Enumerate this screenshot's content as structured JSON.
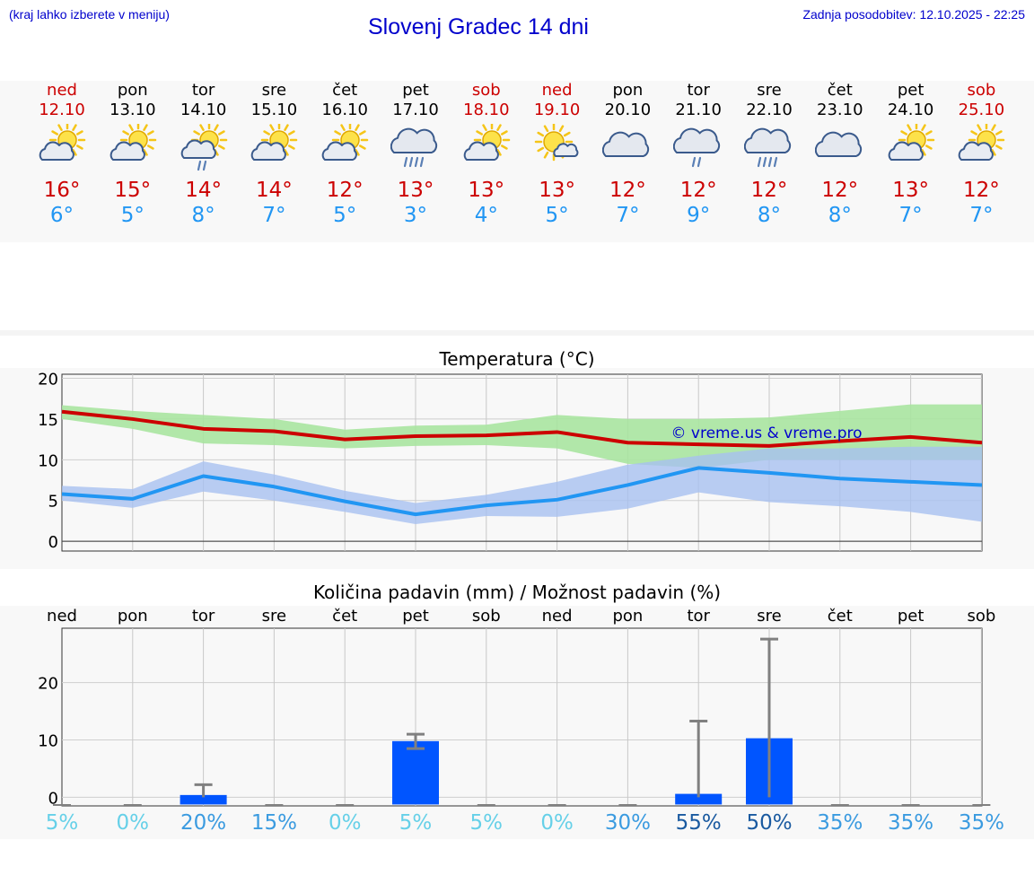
{
  "header": {
    "hint": "(kraj lahko izberete v meniju)",
    "title": "Slovenj Gradec 14 dni",
    "updated": "Zadnja posodobitev: 12.10.2025 - 22:25"
  },
  "colors": {
    "weekend": "#cc0000",
    "weekday": "#000000",
    "max_temp": "#cc0000",
    "min_temp": "#2196f3",
    "max_band": "#a8e4a0",
    "min_band": "#a8c0f0",
    "precip_bar": "#0055ff",
    "error_bar": "#808080",
    "watermark": "#0000cc"
  },
  "days": [
    {
      "name": "ned",
      "date": "12.10",
      "weekend": true,
      "icon": "partly-cloudy-sun-icon",
      "max": "16°",
      "min": "6°"
    },
    {
      "name": "pon",
      "date": "13.10",
      "weekend": false,
      "icon": "partly-cloudy-sun-icon",
      "max": "15°",
      "min": "5°"
    },
    {
      "name": "tor",
      "date": "14.10",
      "weekend": false,
      "icon": "sun-cloud-light-rain-icon",
      "max": "14°",
      "min": "8°"
    },
    {
      "name": "sre",
      "date": "15.10",
      "weekend": false,
      "icon": "partly-cloudy-sun-icon",
      "max": "14°",
      "min": "7°"
    },
    {
      "name": "čet",
      "date": "16.10",
      "weekend": false,
      "icon": "partly-cloudy-sun-icon",
      "max": "12°",
      "min": "5°"
    },
    {
      "name": "pet",
      "date": "17.10",
      "weekend": false,
      "icon": "cloud-rain-icon",
      "max": "13°",
      "min": "3°"
    },
    {
      "name": "sob",
      "date": "18.10",
      "weekend": true,
      "icon": "partly-cloudy-sun-icon",
      "max": "13°",
      "min": "4°"
    },
    {
      "name": "ned",
      "date": "19.10",
      "weekend": true,
      "icon": "sun-small-cloud-icon",
      "max": "13°",
      "min": "5°"
    },
    {
      "name": "pon",
      "date": "20.10",
      "weekend": false,
      "icon": "cloudy-icon",
      "max": "12°",
      "min": "7°"
    },
    {
      "name": "tor",
      "date": "21.10",
      "weekend": false,
      "icon": "cloud-light-rain-icon",
      "max": "12°",
      "min": "9°"
    },
    {
      "name": "sre",
      "date": "22.10",
      "weekend": false,
      "icon": "cloud-rain-icon",
      "max": "12°",
      "min": "8°"
    },
    {
      "name": "čet",
      "date": "23.10",
      "weekend": false,
      "icon": "cloudy-icon",
      "max": "12°",
      "min": "8°"
    },
    {
      "name": "pet",
      "date": "24.10",
      "weekend": false,
      "icon": "partly-cloudy-sun-icon",
      "max": "13°",
      "min": "7°"
    },
    {
      "name": "sob",
      "date": "25.10",
      "weekend": true,
      "icon": "partly-cloudy-sun-icon",
      "max": "12°",
      "min": "7°"
    }
  ],
  "chart_data": [
    {
      "type": "line",
      "title": "Temperatura (°C)",
      "watermark": "© vreme.us & vreme.pro",
      "x": [
        0,
        1,
        2,
        3,
        4,
        5,
        6,
        7,
        8,
        9,
        10,
        11,
        12,
        13
      ],
      "ylim": [
        -1.2,
        20.5
      ],
      "yticks": [
        0,
        5,
        10,
        15,
        20
      ],
      "grid": true,
      "series": [
        {
          "role": "max",
          "values": [
            15.9,
            15.0,
            13.8,
            13.5,
            12.5,
            12.9,
            13.0,
            13.4,
            12.1,
            11.9,
            11.7,
            12.3,
            12.8,
            12.1
          ],
          "band_low": [
            15.0,
            13.8,
            12.0,
            11.8,
            11.4,
            11.7,
            11.8,
            11.4,
            9.5,
            9.0,
            10.0,
            10.0,
            10.0,
            10.0
          ],
          "band_high": [
            16.7,
            16.0,
            15.5,
            15.0,
            13.7,
            14.2,
            14.3,
            15.5,
            15.0,
            15.0,
            15.2,
            16.0,
            16.8,
            16.8
          ]
        },
        {
          "role": "min",
          "values": [
            5.8,
            5.2,
            8.0,
            6.7,
            4.9,
            3.3,
            4.4,
            5.1,
            6.9,
            9.0,
            8.4,
            7.7,
            7.3,
            6.9
          ],
          "band_low": [
            5.0,
            4.1,
            6.1,
            5.0,
            3.6,
            2.1,
            3.1,
            3.0,
            4.0,
            6.0,
            4.8,
            4.3,
            3.6,
            2.4
          ],
          "band_high": [
            6.8,
            6.4,
            9.8,
            8.2,
            6.2,
            4.7,
            5.7,
            7.3,
            9.4,
            10.5,
            11.4,
            11.4,
            11.6,
            11.6
          ]
        }
      ]
    },
    {
      "type": "bar",
      "title": "Količina padavin (mm) / Možnost padavin (%)",
      "categories": [
        "ned",
        "pon",
        "tor",
        "sre",
        "čet",
        "pet",
        "sob",
        "ned",
        "pon",
        "tor",
        "sre",
        "čet",
        "pet",
        "sob"
      ],
      "ylim": [
        -1.5,
        29.5
      ],
      "yticks": [
        0,
        10,
        20
      ],
      "grid": true,
      "values": [
        0,
        0,
        0.4,
        0,
        0,
        9.8,
        0,
        0,
        0,
        0.6,
        10.3,
        0,
        0,
        0
      ],
      "err_low": [
        0,
        0,
        0,
        0,
        0,
        8.5,
        0,
        0,
        0,
        0,
        0,
        0,
        0,
        0
      ],
      "err_high": [
        0,
        0,
        2.2,
        0,
        0,
        11.0,
        0,
        0,
        0,
        13.3,
        27.6,
        0,
        0,
        0
      ],
      "probability": [
        "5%",
        "0%",
        "20%",
        "15%",
        "0%",
        "5%",
        "5%",
        "0%",
        "30%",
        "55%",
        "50%",
        "35%",
        "35%",
        "35%"
      ],
      "probability_values": [
        5,
        0,
        20,
        15,
        0,
        5,
        5,
        0,
        30,
        55,
        50,
        35,
        35,
        35
      ]
    }
  ]
}
